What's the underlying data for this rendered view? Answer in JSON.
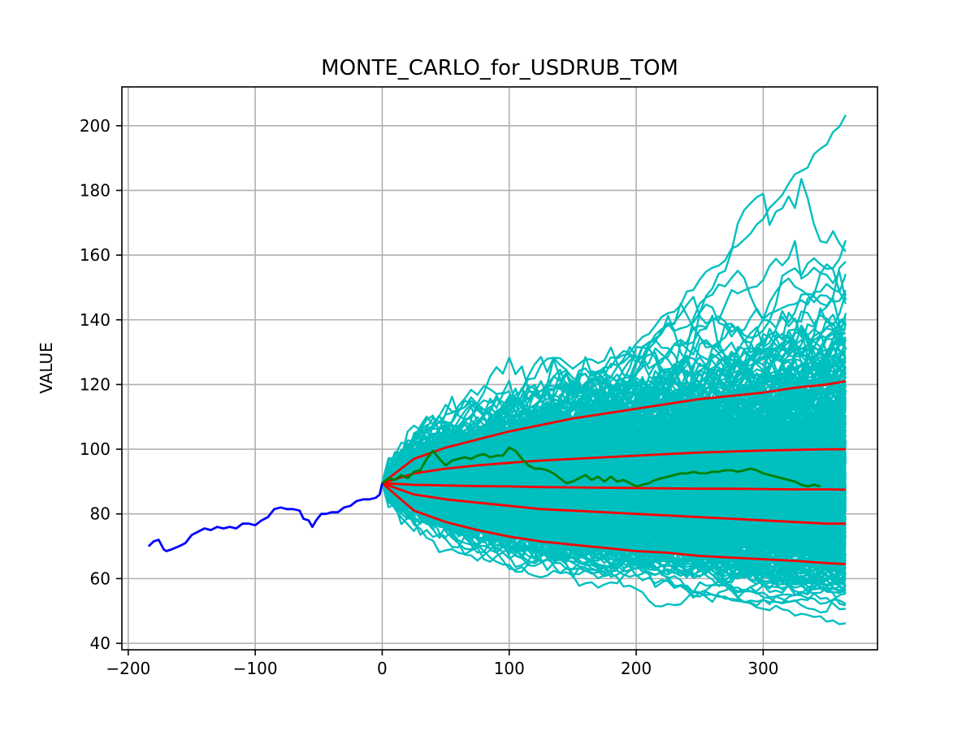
{
  "chart_data": {
    "type": "line",
    "title": "MONTE_CARLO_for_USDRUB_TOM",
    "xlabel": "",
    "ylabel": "VALUE",
    "xlim": [
      -205,
      390
    ],
    "ylim": [
      38,
      212
    ],
    "xticks": [
      -200,
      -100,
      0,
      100,
      200,
      300
    ],
    "xtick_labels": [
      "−200",
      "−100",
      "0",
      "100",
      "200",
      "300"
    ],
    "yticks": [
      40,
      60,
      80,
      100,
      120,
      140,
      160,
      180,
      200
    ],
    "ytick_labels": [
      "40",
      "60",
      "80",
      "100",
      "120",
      "140",
      "160",
      "180",
      "200"
    ],
    "grid": true,
    "legend": "none",
    "colors": {
      "history": "#0000ff",
      "simulations": "#00bfbf",
      "percentiles": "#ff0000",
      "actual": "#008000"
    },
    "history": {
      "x": [
        -184,
        -180,
        -176,
        -172,
        -170,
        -166,
        -160,
        -155,
        -150,
        -145,
        -140,
        -135,
        -130,
        -125,
        -120,
        -115,
        -110,
        -105,
        -100,
        -95,
        -90,
        -85,
        -80,
        -75,
        -70,
        -65,
        -62,
        -58,
        -55,
        -52,
        -48,
        -44,
        -40,
        -35,
        -30,
        -25,
        -20,
        -15,
        -10,
        -5,
        -2,
        0
      ],
      "y": [
        70,
        71.5,
        72,
        69,
        68.5,
        69,
        70,
        71,
        73.5,
        74.5,
        75.5,
        75,
        76,
        75.5,
        76,
        75.5,
        77,
        77,
        76.5,
        78,
        79,
        81.5,
        82,
        81.5,
        81.5,
        81,
        78.5,
        78,
        76,
        78,
        80,
        80,
        80.5,
        80.5,
        82,
        82.5,
        84,
        84.5,
        84.5,
        85,
        86,
        89.5
      ]
    },
    "simulations": {
      "n_paths": 600,
      "x_range": [
        0,
        365
      ],
      "start_value": 89.5,
      "lower_envelope_end": 46,
      "upper_envelope_end": 203
    },
    "percentiles": {
      "x": [
        0,
        25,
        50,
        75,
        100,
        125,
        150,
        175,
        200,
        225,
        250,
        275,
        300,
        325,
        350,
        365
      ],
      "series": [
        {
          "values": [
            89.5,
            97,
            100.5,
            103,
            105.5,
            107.5,
            109.5,
            111,
            112.5,
            114,
            115.5,
            116.5,
            117.5,
            119,
            120,
            121
          ]
        },
        {
          "values": [
            89.5,
            92.5,
            94,
            95,
            95.8,
            96.5,
            97,
            97.5,
            98,
            98.5,
            99,
            99.3,
            99.6,
            99.8,
            100,
            100
          ]
        },
        {
          "values": [
            89.5,
            89,
            88.8,
            88.6,
            88.5,
            88.3,
            88.2,
            88.1,
            88,
            87.9,
            87.8,
            87.8,
            87.7,
            87.6,
            87.6,
            87.5
          ]
        },
        {
          "values": [
            89.5,
            86,
            84.5,
            83.5,
            82.5,
            81.5,
            81,
            80.5,
            80,
            79.5,
            79,
            78.5,
            78,
            77.5,
            77,
            77
          ]
        },
        {
          "values": [
            89.5,
            81,
            77.5,
            75,
            73,
            71.5,
            70.5,
            69.5,
            68.5,
            68,
            67,
            66.5,
            66,
            65.5,
            64.8,
            64.5
          ]
        }
      ]
    },
    "actual": {
      "x": [
        0,
        5,
        10,
        15,
        20,
        25,
        30,
        35,
        40,
        45,
        50,
        55,
        60,
        65,
        70,
        75,
        80,
        85,
        90,
        95,
        100,
        105,
        110,
        115,
        120,
        125,
        130,
        135,
        140,
        145,
        150,
        155,
        160,
        165,
        170,
        175,
        180,
        185,
        190,
        195,
        200,
        205,
        210,
        215,
        220,
        225,
        230,
        235,
        240,
        245,
        250,
        255,
        260,
        265,
        270,
        275,
        280,
        285,
        290,
        295,
        300,
        305,
        310,
        315,
        320,
        325,
        330,
        335,
        340,
        345
      ],
      "y": [
        89.5,
        91,
        90.5,
        92,
        91,
        93,
        93.5,
        97,
        99.5,
        97,
        95,
        96.5,
        97,
        97.5,
        97,
        98,
        98.5,
        97.5,
        98,
        98,
        100.5,
        99.5,
        97,
        95,
        94,
        94,
        93.5,
        92.5,
        91,
        89.5,
        90,
        91,
        92,
        90.5,
        91.5,
        90,
        91.5,
        90,
        90.5,
        89.5,
        88.5,
        89,
        89.5,
        90.5,
        91,
        91.5,
        92,
        92.5,
        92.5,
        93,
        92.5,
        92.5,
        93,
        93,
        93.5,
        93.5,
        93,
        93.5,
        94,
        93.5,
        92.5,
        92,
        91.5,
        91,
        90.5,
        90,
        89,
        88.5,
        89,
        88.5
      ]
    }
  }
}
